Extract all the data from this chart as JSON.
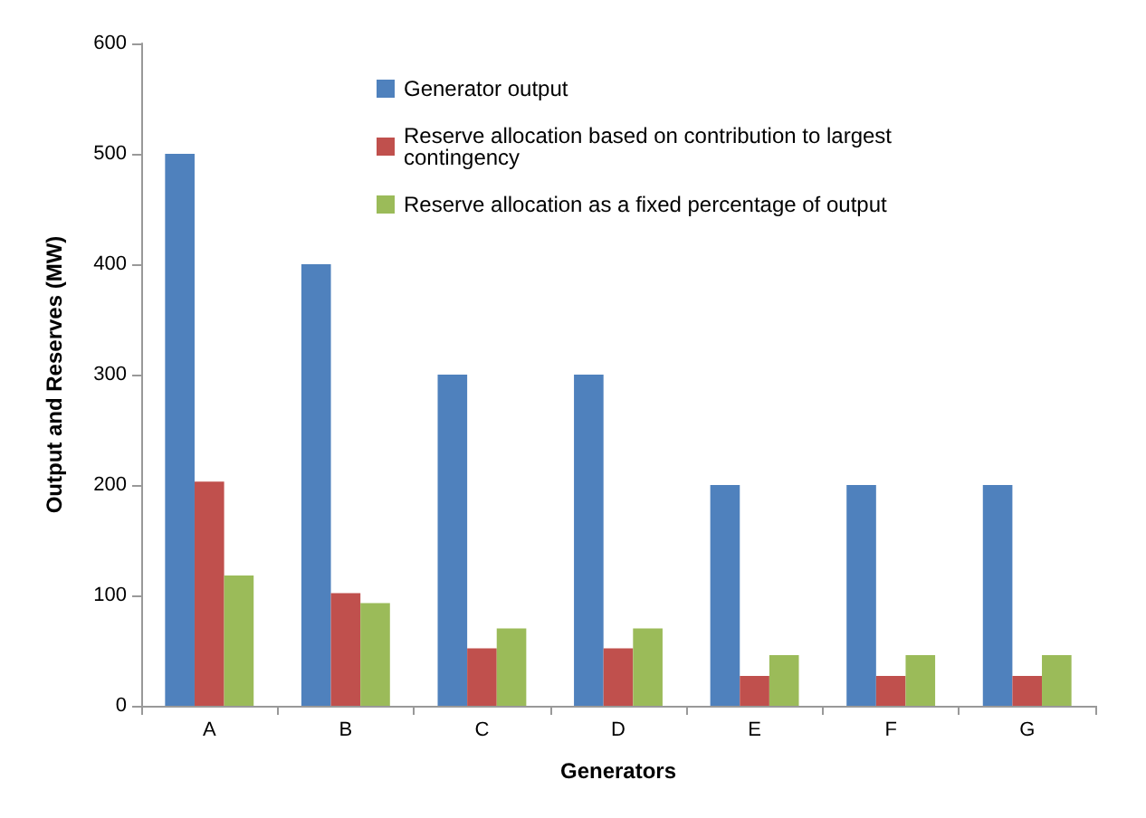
{
  "chart_data": {
    "type": "bar",
    "xlabel": "Generators",
    "ylabel": "Output and Reserves (MW)",
    "categories": [
      "A",
      "B",
      "C",
      "D",
      "E",
      "F",
      "G"
    ],
    "series": [
      {
        "name": "Generator output",
        "color": "#4f81bd",
        "values": [
          500,
          400,
          300,
          300,
          200,
          200,
          200
        ]
      },
      {
        "name": "Reserve allocation based on contribution to largest\ncontingency",
        "color": "#c0504d",
        "values": [
          203,
          102,
          52,
          52,
          27,
          27,
          27
        ]
      },
      {
        "name": "Reserve allocation as a fixed percentage of output",
        "color": "#9bbb59",
        "values": [
          118,
          93,
          70,
          70,
          46,
          46,
          46
        ]
      }
    ],
    "ylim": [
      0,
      600
    ],
    "yticks": [
      0,
      100,
      200,
      300,
      400,
      500,
      600
    ],
    "grid": false,
    "legend": "top"
  }
}
